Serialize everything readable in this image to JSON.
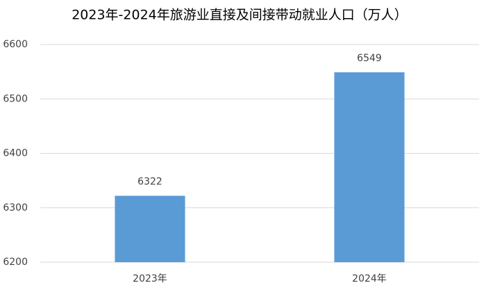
{
  "chart_data": {
    "type": "bar",
    "title": "2023年-2024年旅游业直接及间接带动就业人口（万人）",
    "categories": [
      "2023年",
      "2024年"
    ],
    "values": [
      6322,
      6549
    ],
    "color": "#5b9bd5",
    "ylim": [
      6200,
      6600
    ],
    "yticks": [
      6200,
      6300,
      6400,
      6500,
      6600
    ],
    "grid": true
  }
}
